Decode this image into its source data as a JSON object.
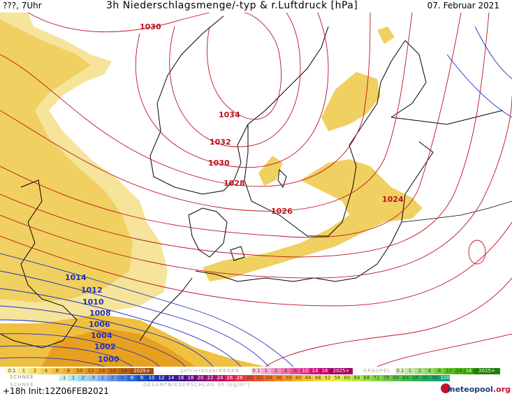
{
  "header": {
    "left": "???, 7Uhr",
    "title": "3h Niederschlagsmenge/-typ & r.Luftdruck [hPa]",
    "date": "07. Februar 2021"
  },
  "map": {
    "labels": [
      {
        "text": "1030",
        "color": "red"
      },
      {
        "text": "1034",
        "color": "red"
      },
      {
        "text": "1032",
        "color": "red"
      },
      {
        "text": "1030",
        "color": "red"
      },
      {
        "text": "1028",
        "color": "red"
      },
      {
        "text": "1026",
        "color": "red"
      },
      {
        "text": "1024",
        "color": "red"
      },
      {
        "text": "1014",
        "color": "blue"
      },
      {
        "text": "1012",
        "color": "blue"
      },
      {
        "text": "1010",
        "color": "blue"
      },
      {
        "text": "1008",
        "color": "blue"
      },
      {
        "text": "1006",
        "color": "blue"
      },
      {
        "text": "1004",
        "color": "blue"
      },
      {
        "text": "1002",
        "color": "blue"
      },
      {
        "text": "1000",
        "color": "blue"
      }
    ],
    "colors": {
      "isobar_high": "#c0101e",
      "isobar_low": "#2030c0",
      "snow_light": "#f5e49a",
      "snow_mid": "#f0d060",
      "snow_heavy": "#e8a020",
      "coast": "#000000"
    }
  },
  "legend": {
    "schnee_label": "SCHNEE",
    "snow_values": [
      "0.1",
      "1",
      "2",
      "4",
      "6",
      "8",
      "10",
      "12",
      "14",
      "16",
      "18",
      "2025+"
    ],
    "freezing_label": "gefrierenderREGEN",
    "freezing_values": [
      "0.1",
      "1",
      "2",
      "4",
      "8",
      "10",
      "14",
      "16",
      "2025+"
    ],
    "graupel_label": "GRAUPEL",
    "graupel_values": [
      "0.1",
      "1",
      "2",
      "4",
      "8",
      "10",
      "14",
      "16",
      "2025+"
    ],
    "rain_values": [
      ".1",
      "1",
      "2",
      ".5",
      "1",
      "2",
      "4",
      "6",
      "8",
      "10",
      "12",
      "14",
      "16",
      "18",
      "20",
      "22",
      "24",
      "26",
      "28",
      "30",
      "32",
      "34",
      "36",
      "38",
      "40",
      "44",
      "48",
      "52",
      "56",
      "60",
      "64",
      "68",
      "72",
      "76",
      "80",
      "84",
      "88",
      "92",
      "96",
      "100"
    ],
    "gesamt_label": "GESAMTNIEDERSCHLAG 3h [kg/m²]",
    "schnee_bottom": "SCHNEE",
    "init": "+18h Init:12Z06FEB2021",
    "brand": "meteopool",
    "brand_suffix": ".org"
  }
}
